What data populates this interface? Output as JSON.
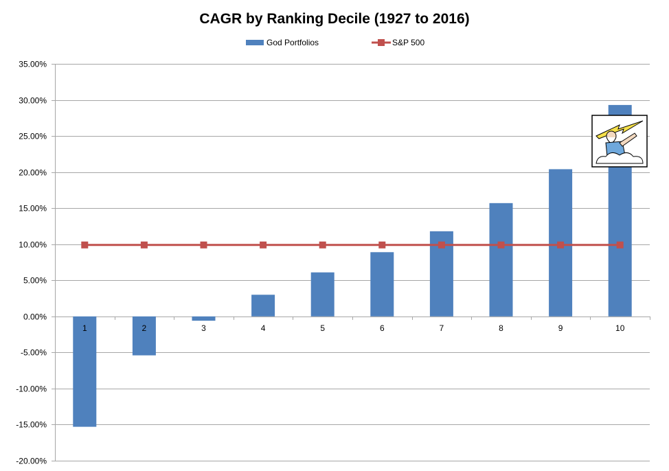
{
  "chart_data": {
    "type": "bar",
    "title": "CAGR by Ranking Decile (1927 to 2016)",
    "xlabel": "",
    "ylabel": "",
    "categories": [
      "1",
      "2",
      "3",
      "4",
      "5",
      "6",
      "7",
      "8",
      "9",
      "10"
    ],
    "y_tick_labels": [
      "35.00%",
      "30.00%",
      "25.00%",
      "20.00%",
      "15.00%",
      "10.00%",
      "5.00%",
      "0.00%",
      "-5.00%",
      "-10.00%",
      "-15.00%",
      "-20.00%"
    ],
    "ylim": [
      -20,
      35
    ],
    "y_tick_step": 5,
    "y_unit": "percent",
    "grid": true,
    "legend_position": "top",
    "series": [
      {
        "name": "God Portfolios",
        "type": "bar",
        "color": "#4F81BD",
        "values": [
          -15.3,
          -5.4,
          -0.6,
          3.0,
          6.1,
          8.9,
          11.8,
          15.7,
          20.4,
          29.3
        ]
      },
      {
        "name": "S&P 500",
        "type": "line",
        "marker": "square",
        "color": "#C0504D",
        "values": [
          9.9,
          9.9,
          9.9,
          9.9,
          9.9,
          9.9,
          9.9,
          9.9,
          9.9,
          9.9
        ]
      }
    ],
    "annotations": [
      {
        "type": "image",
        "icon": "zeus-lightning-illustration",
        "near_category": "10"
      }
    ]
  }
}
